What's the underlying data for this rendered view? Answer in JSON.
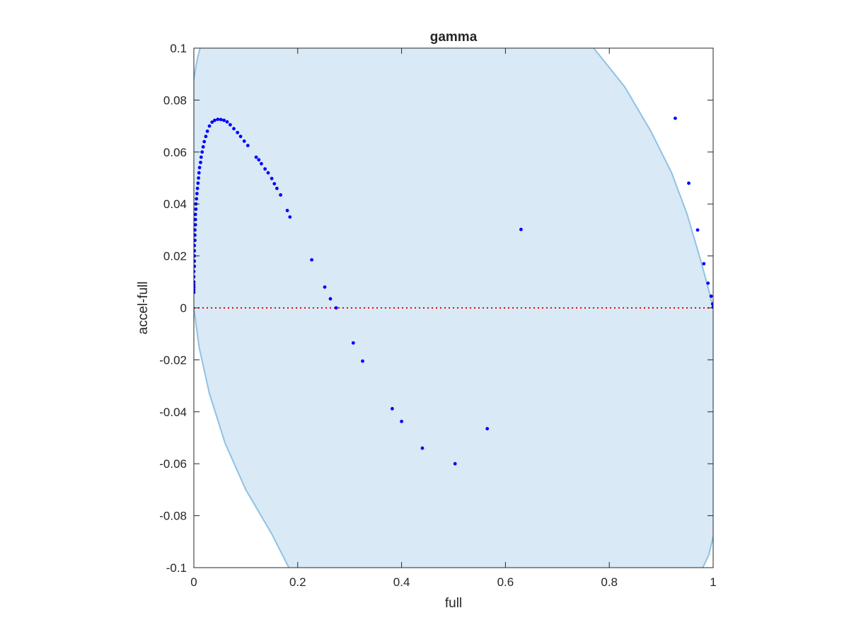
{
  "chart_data": {
    "type": "scatter",
    "title": "gamma",
    "xlabel": "full",
    "ylabel": "accel-full",
    "xlim": [
      0,
      1
    ],
    "ylim": [
      -0.1,
      0.1
    ],
    "xticks": [
      0,
      0.2,
      0.4,
      0.6,
      0.8,
      1
    ],
    "xtick_labels": [
      "0",
      "0.2",
      "0.4",
      "0.6",
      "0.8",
      "1"
    ],
    "yticks": [
      -0.1,
      -0.08,
      -0.06,
      -0.04,
      -0.02,
      0,
      0.02,
      0.04,
      0.06,
      0.08,
      0.1
    ],
    "ytick_labels": [
      "-0.1",
      "-0.08",
      "-0.06",
      "-0.04",
      "-0.02",
      "0",
      "0.02",
      "0.04",
      "0.06",
      "0.08",
      "0.1"
    ],
    "grid": false,
    "box": true,
    "colors": {
      "points": "#0000ff",
      "zero_line": "#ff0000",
      "region_fill": "#d9e9f5",
      "region_edge": "#8ec2e6",
      "axes": "#262626"
    },
    "shaded_region": {
      "left_boundary": [
        [
          0.0,
          0.088
        ],
        [
          0.004,
          0.093
        ],
        [
          0.008,
          0.097
        ],
        [
          0.012,
          0.1
        ]
      ],
      "left_boundary_lower": [
        [
          0.0,
          0.0
        ],
        [
          0.01,
          -0.015
        ],
        [
          0.03,
          -0.033
        ],
        [
          0.06,
          -0.052
        ],
        [
          0.1,
          -0.07
        ],
        [
          0.15,
          -0.087
        ],
        [
          0.183,
          -0.1
        ]
      ],
      "right_boundary": [
        [
          0.77,
          0.1
        ],
        [
          0.83,
          0.085
        ],
        [
          0.88,
          0.068
        ],
        [
          0.92,
          0.052
        ],
        [
          0.95,
          0.036
        ],
        [
          0.975,
          0.019
        ],
        [
          0.99,
          0.008
        ],
        [
          1.0,
          0.0
        ]
      ],
      "right_boundary_lower": [
        [
          0.98,
          -0.1
        ],
        [
          0.992,
          -0.095
        ],
        [
          1.0,
          -0.088
        ]
      ]
    },
    "reference_line": {
      "y": 0,
      "style": "dotted"
    },
    "series": [
      {
        "values": [
          [
            0.0,
            0.006
          ],
          [
            0.0,
            0.007
          ],
          [
            0.0,
            0.008
          ],
          [
            0.0,
            0.009
          ],
          [
            0.0,
            0.01
          ],
          [
            0.0,
            0.012
          ],
          [
            0.0,
            0.014
          ],
          [
            0.001,
            0.016
          ],
          [
            0.001,
            0.018
          ],
          [
            0.001,
            0.02
          ],
          [
            0.001,
            0.022
          ],
          [
            0.001,
            0.024
          ],
          [
            0.002,
            0.026
          ],
          [
            0.002,
            0.028
          ],
          [
            0.002,
            0.03
          ],
          [
            0.003,
            0.032
          ],
          [
            0.003,
            0.034
          ],
          [
            0.003,
            0.036
          ],
          [
            0.004,
            0.038
          ],
          [
            0.004,
            0.04
          ],
          [
            0.005,
            0.042
          ],
          [
            0.006,
            0.044
          ],
          [
            0.007,
            0.046
          ],
          [
            0.008,
            0.048
          ],
          [
            0.009,
            0.05
          ],
          [
            0.01,
            0.052
          ],
          [
            0.011,
            0.054
          ],
          [
            0.013,
            0.056
          ],
          [
            0.014,
            0.058
          ],
          [
            0.016,
            0.06
          ],
          [
            0.018,
            0.062
          ],
          [
            0.02,
            0.064
          ],
          [
            0.023,
            0.066
          ],
          [
            0.026,
            0.068
          ],
          [
            0.03,
            0.07
          ],
          [
            0.035,
            0.0715
          ],
          [
            0.04,
            0.0722
          ],
          [
            0.046,
            0.0726
          ],
          [
            0.052,
            0.0725
          ],
          [
            0.058,
            0.0722
          ],
          [
            0.064,
            0.0716
          ],
          [
            0.07,
            0.0705
          ],
          [
            0.077,
            0.069
          ],
          [
            0.084,
            0.0675
          ],
          [
            0.09,
            0.066
          ],
          [
            0.097,
            0.0642
          ],
          [
            0.104,
            0.0625
          ],
          [
            0.12,
            0.058
          ],
          [
            0.125,
            0.057
          ],
          [
            0.13,
            0.0555
          ],
          [
            0.137,
            0.0535
          ],
          [
            0.143,
            0.052
          ],
          [
            0.15,
            0.0498
          ],
          [
            0.155,
            0.0478
          ],
          [
            0.16,
            0.046
          ],
          [
            0.167,
            0.0435
          ],
          [
            0.18,
            0.0375
          ],
          [
            0.185,
            0.035
          ],
          [
            0.227,
            0.0185
          ],
          [
            0.252,
            0.008
          ],
          [
            0.263,
            0.0035
          ],
          [
            0.274,
            0.0
          ],
          [
            0.307,
            -0.0135
          ],
          [
            0.325,
            -0.0205
          ],
          [
            0.382,
            -0.0388
          ],
          [
            0.4,
            -0.0437
          ],
          [
            0.44,
            -0.054
          ],
          [
            0.503,
            -0.06
          ],
          [
            0.565,
            -0.0465
          ],
          [
            0.63,
            0.0302
          ],
          [
            0.927,
            0.073
          ],
          [
            0.953,
            0.048
          ],
          [
            0.97,
            0.03
          ],
          [
            0.982,
            0.017
          ],
          [
            0.99,
            0.0095
          ],
          [
            0.996,
            0.0045
          ],
          [
            0.999,
            0.0015
          ],
          [
            1.0,
            0.0003
          ]
        ]
      }
    ]
  }
}
